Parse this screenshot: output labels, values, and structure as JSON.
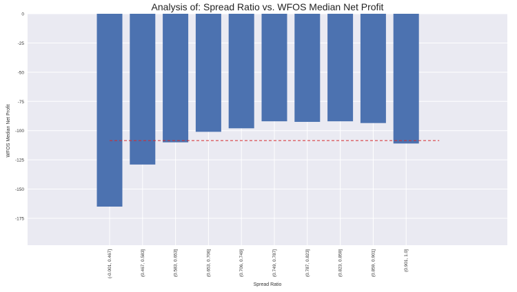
{
  "chart_data": {
    "type": "bar",
    "title": "Analysis of: Spread Ratio vs. WFOS Median Net Profit",
    "xlabel": "Spread Ratio",
    "ylabel": "WFOS Median Net Profit",
    "categories": [
      "(-0.001, 0.467]",
      "(0.467, 0.583]",
      "(0.583, 0.653]",
      "(0.653, 0.706]",
      "(0.706, 0.749]",
      "(0.749, 0.787]",
      "(0.787, 0.823]",
      "(0.823, 0.859]",
      "(0.859, 0.901]",
      "(0.901, 1.0]"
    ],
    "values": [
      -165,
      -129,
      -110,
      -101,
      -98,
      -92,
      -92.5,
      -92,
      -93.5,
      -111
    ],
    "reference_line": {
      "value": -108.5,
      "style": "dashed",
      "color": "#d62728"
    },
    "ylim": [
      -198,
      0
    ],
    "yticks": [
      0,
      -25,
      -50,
      -75,
      -100,
      -125,
      -150,
      -175
    ],
    "grid": true,
    "bar_color": "#4c72b0",
    "background_color": "#eaeaf2"
  }
}
